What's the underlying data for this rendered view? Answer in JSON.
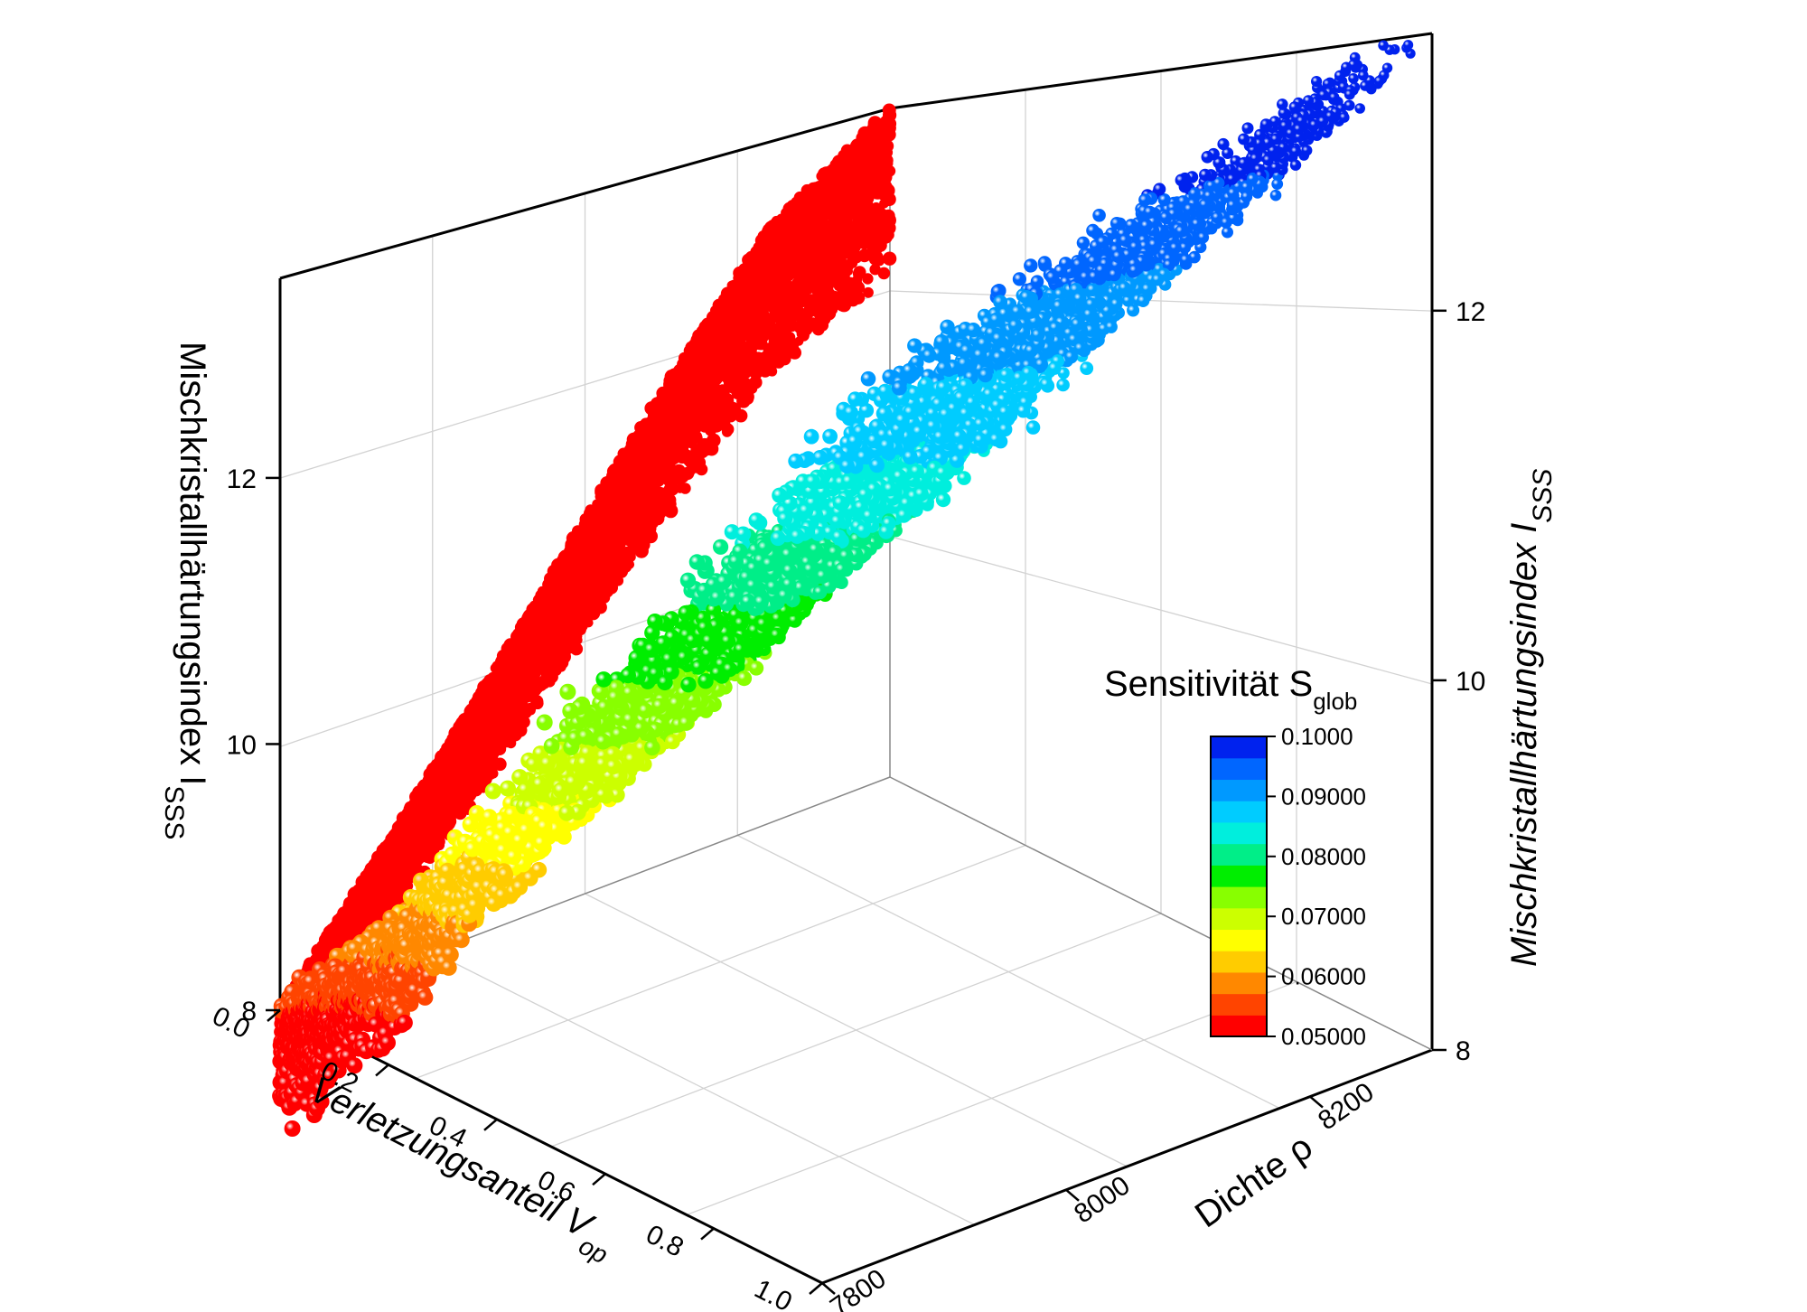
{
  "chart_data": {
    "type": "scatter",
    "dimensions": 3,
    "title": "",
    "x_axis": {
      "label": "Verletzungsanteil V",
      "label_sub": "op",
      "ticks": [
        "0.0",
        "0.2",
        "0.4",
        "0.6",
        "0.8",
        "1.0"
      ],
      "range": [
        0,
        1
      ]
    },
    "y_axis": {
      "label": "Dichte ρ",
      "ticks": [
        "7800",
        "8000",
        "8200"
      ],
      "range": [
        7800,
        8300
      ]
    },
    "z_axis_left": {
      "label": "Mischkristallhärtungsindex I",
      "label_sub": "SSS",
      "ticks": [
        "8",
        "10",
        "12"
      ],
      "range": [
        8,
        13.5
      ]
    },
    "z_axis_right": {
      "label": "Mischkristallhärtungsindex I",
      "label_sub": "SSS",
      "ticks": [
        "8",
        "10",
        "12"
      ],
      "range": [
        8,
        13.5
      ]
    },
    "grid": true,
    "series": [
      {
        "role": "projection onto back wall (Dichte = 7800 plane)",
        "color": "#ff0000",
        "outline_curve": [
          [
            0.0,
            8.0
          ],
          [
            0.2,
            9.1
          ],
          [
            0.4,
            10.3
          ],
          [
            0.6,
            11.6
          ],
          [
            0.8,
            12.8
          ],
          [
            1.0,
            13.5
          ]
        ],
        "band_width_in_I": 1.4
      },
      {
        "role": "3D scatter colored by Sensitivität",
        "ridge_curve": [
          {
            "Vop": 0.0,
            "rho": 7800,
            "I": 8.0
          },
          {
            "Vop": 0.2,
            "rho": 7900,
            "I": 9.2
          },
          {
            "Vop": 0.4,
            "rho": 8000,
            "I": 10.5
          },
          {
            "Vop": 0.6,
            "rho": 8100,
            "I": 11.7
          },
          {
            "Vop": 0.8,
            "rho": 8200,
            "I": 12.8
          },
          {
            "Vop": 1.0,
            "rho": 8280,
            "I": 13.5
          }
        ]
      }
    ],
    "colorbar": {
      "title": "Sensitivität S",
      "title_sub": "glob",
      "range": [
        0.05,
        0.1
      ],
      "tick_labels": [
        "0.1000",
        "0.09000",
        "0.08000",
        "0.07000",
        "0.06000",
        "0.05000"
      ],
      "tick_values": [
        0.1,
        0.09,
        0.08,
        0.07,
        0.06,
        0.05
      ],
      "colors_bottom_to_top": [
        "#ff0000",
        "#ff4400",
        "#ff8800",
        "#ffcc00",
        "#ffff00",
        "#ccff00",
        "#88ff00",
        "#00ee00",
        "#00ee88",
        "#00eedd",
        "#00ccff",
        "#0099ff",
        "#0066ff",
        "#0022ee"
      ]
    }
  }
}
